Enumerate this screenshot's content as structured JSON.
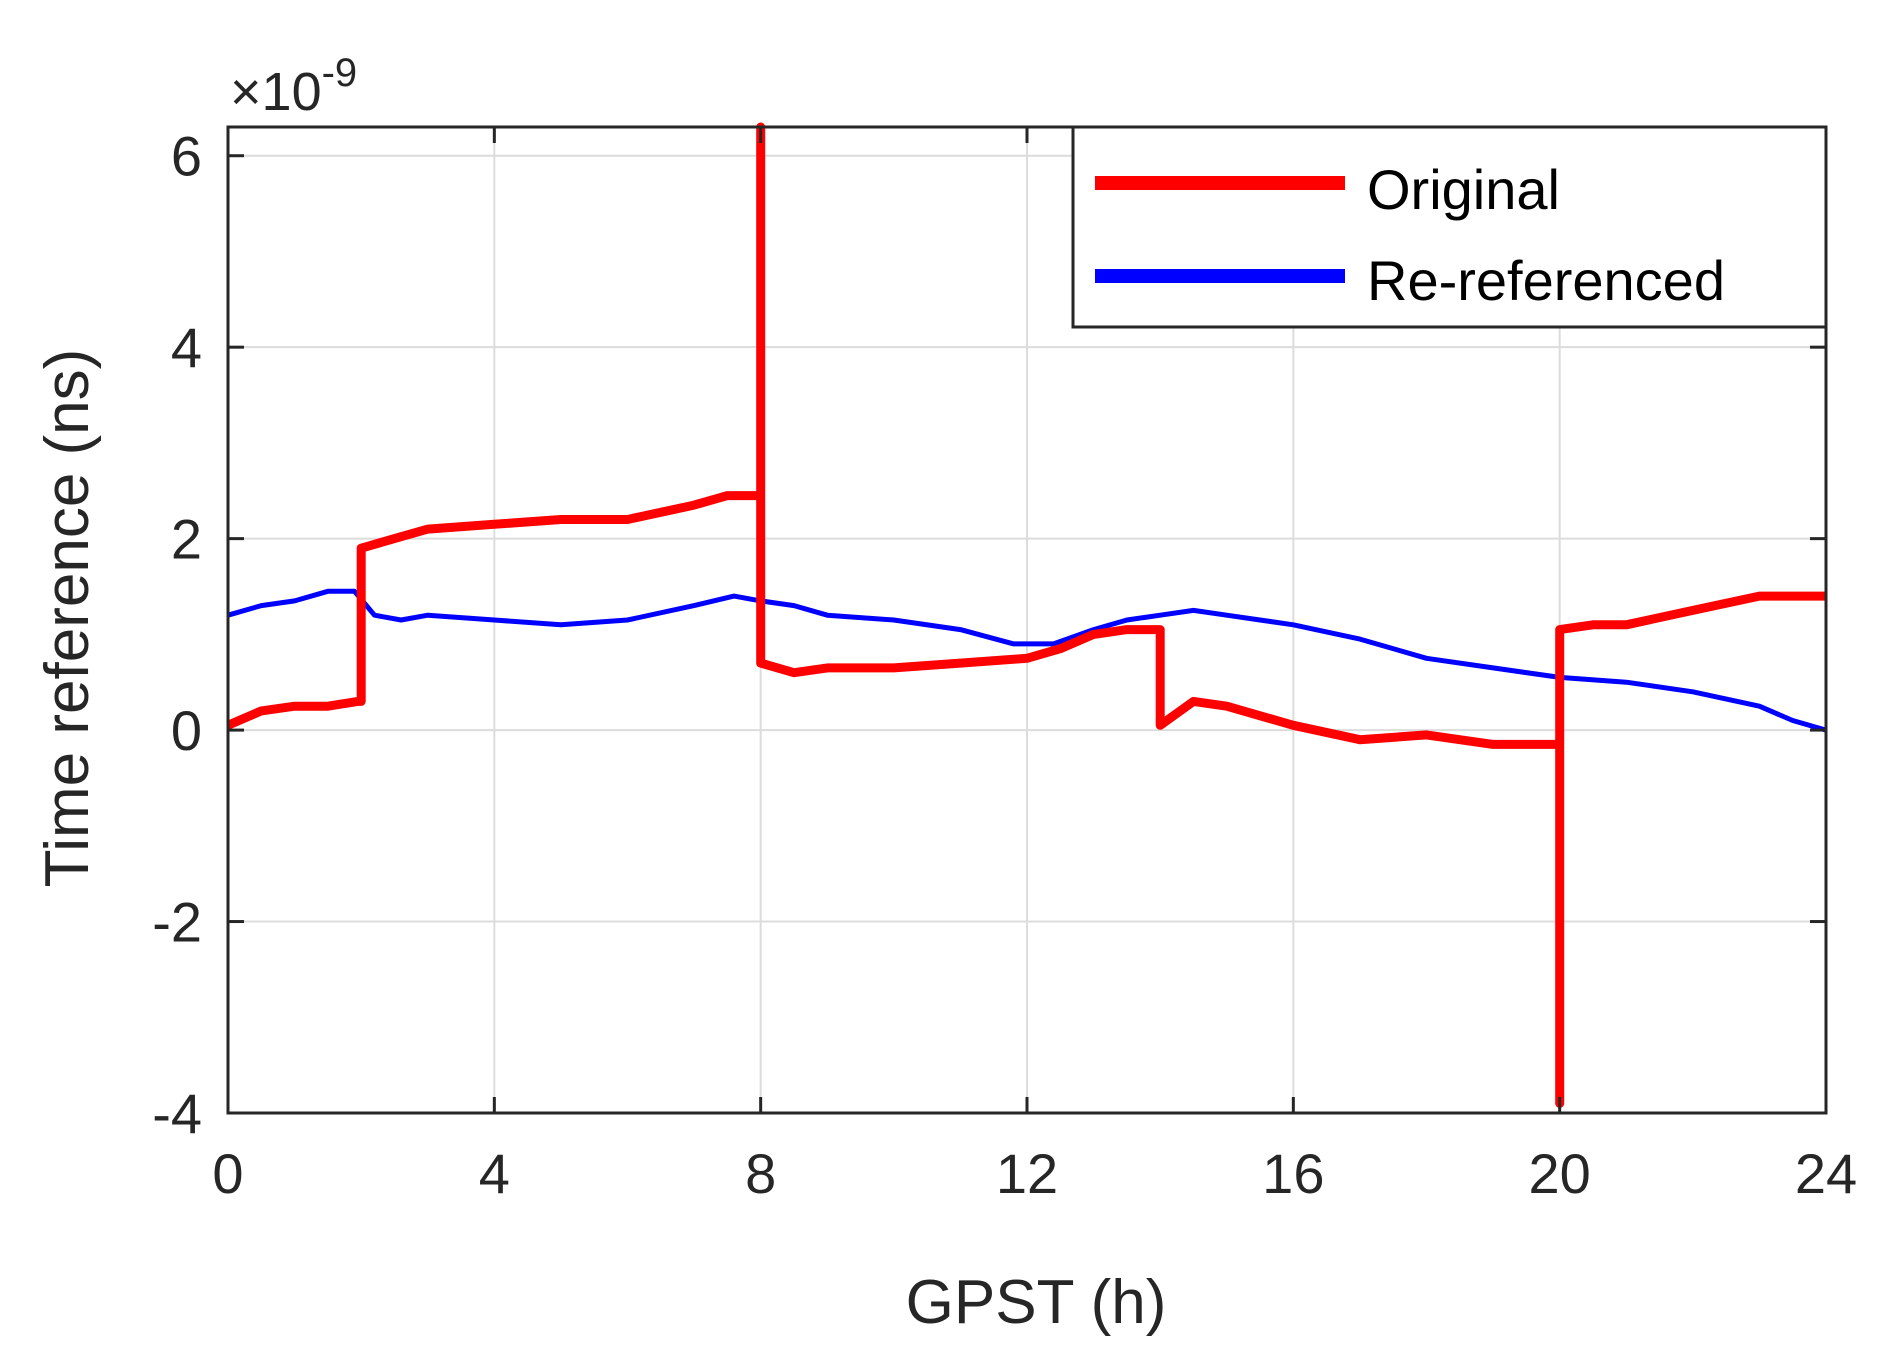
{
  "chart_data": {
    "type": "line",
    "xlabel": "GPST (h)",
    "ylabel": "Time reference (ns)",
    "y_exponent_label": "×10^-9",
    "y_exponent_base": "×10",
    "y_exponent_power": "-9",
    "xlim": [
      0,
      24
    ],
    "ylim": [
      -4,
      6.3
    ],
    "xticks": [
      0,
      4,
      8,
      12,
      16,
      20,
      24
    ],
    "yticks": [
      -4,
      -2,
      0,
      2,
      4,
      6
    ],
    "xtick_labels": [
      "0",
      "4",
      "8",
      "12",
      "16",
      "20",
      "24"
    ],
    "ytick_labels": [
      "-4",
      "-2",
      "0",
      "2",
      "4",
      "6"
    ],
    "grid": true,
    "legend_position": "top-right",
    "series": [
      {
        "name": "Original",
        "color": "#ff0000",
        "x": [
          0,
          0.5,
          1.0,
          1.5,
          1.95,
          2.0,
          2.0,
          2.5,
          3.0,
          4.0,
          5.0,
          6.0,
          7.0,
          7.5,
          7.95,
          8.0,
          8.0,
          8.0,
          8.0,
          8.5,
          9.0,
          10.0,
          11.0,
          12.0,
          12.5,
          13.0,
          13.5,
          13.95,
          14.0,
          14.0,
          14.5,
          15.0,
          16.0,
          17.0,
          18.0,
          19.0,
          19.95,
          20.0,
          20.0,
          20.0,
          20.0,
          20.5,
          21.0,
          22.0,
          23.0,
          24.0
        ],
        "y": [
          0.05,
          0.2,
          0.25,
          0.25,
          0.3,
          0.3,
          1.9,
          2.0,
          2.1,
          2.15,
          2.2,
          2.2,
          2.35,
          2.45,
          2.45,
          2.45,
          6.3,
          0.7,
          0.7,
          0.6,
          0.65,
          0.65,
          0.7,
          0.75,
          0.85,
          1.0,
          1.05,
          1.05,
          1.05,
          0.05,
          0.3,
          0.25,
          0.05,
          -0.1,
          -0.05,
          -0.15,
          -0.15,
          -0.15,
          -3.9,
          1.05,
          1.05,
          1.1,
          1.1,
          1.25,
          1.4,
          1.4
        ]
      },
      {
        "name": "Re-referenced",
        "color": "#0000ff",
        "x": [
          0,
          0.5,
          1.0,
          1.5,
          1.9,
          2.2,
          2.6,
          3.0,
          4.0,
          5.0,
          6.0,
          7.0,
          7.6,
          8.0,
          8.5,
          9.0,
          10.0,
          11.0,
          11.8,
          12.4,
          13.0,
          13.5,
          14.0,
          14.5,
          15.0,
          15.5,
          16.0,
          17.0,
          18.0,
          19.0,
          20.0,
          21.0,
          22.0,
          23.0,
          23.5,
          24.0
        ],
        "y": [
          1.2,
          1.3,
          1.35,
          1.45,
          1.45,
          1.2,
          1.15,
          1.2,
          1.15,
          1.1,
          1.15,
          1.3,
          1.4,
          1.35,
          1.3,
          1.2,
          1.15,
          1.05,
          0.9,
          0.9,
          1.05,
          1.15,
          1.2,
          1.25,
          1.2,
          1.15,
          1.1,
          0.95,
          0.75,
          0.65,
          0.55,
          0.5,
          0.4,
          0.25,
          0.1,
          0.0
        ]
      }
    ]
  }
}
